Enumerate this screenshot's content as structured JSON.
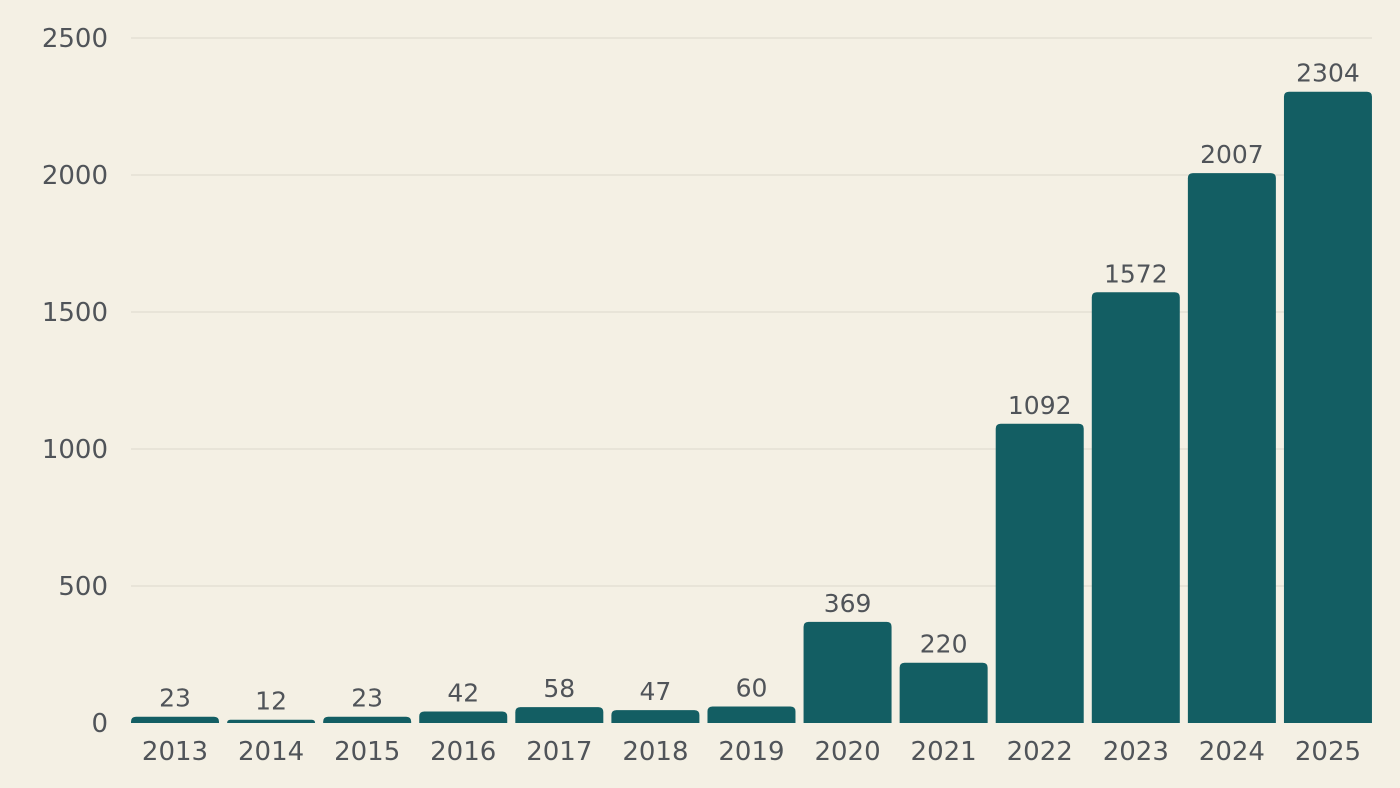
{
  "chart_data": {
    "type": "bar",
    "title": "",
    "xlabel": "",
    "ylabel": "",
    "categories": [
      "2013",
      "2014",
      "2015",
      "2016",
      "2017",
      "2018",
      "2019",
      "2020",
      "2021",
      "2022",
      "2023",
      "2024",
      "2025"
    ],
    "values": [
      23,
      12,
      23,
      42,
      58,
      47,
      60,
      369,
      220,
      1092,
      1572,
      2007,
      2304
    ],
    "ylim": [
      0,
      2500
    ],
    "yticks": [
      0,
      500,
      1000,
      1500,
      2000,
      2500
    ],
    "grid": true,
    "legend": "none",
    "colors": {
      "bar": "#135e63",
      "background": "#f4f0e4",
      "text": "#505459"
    }
  }
}
